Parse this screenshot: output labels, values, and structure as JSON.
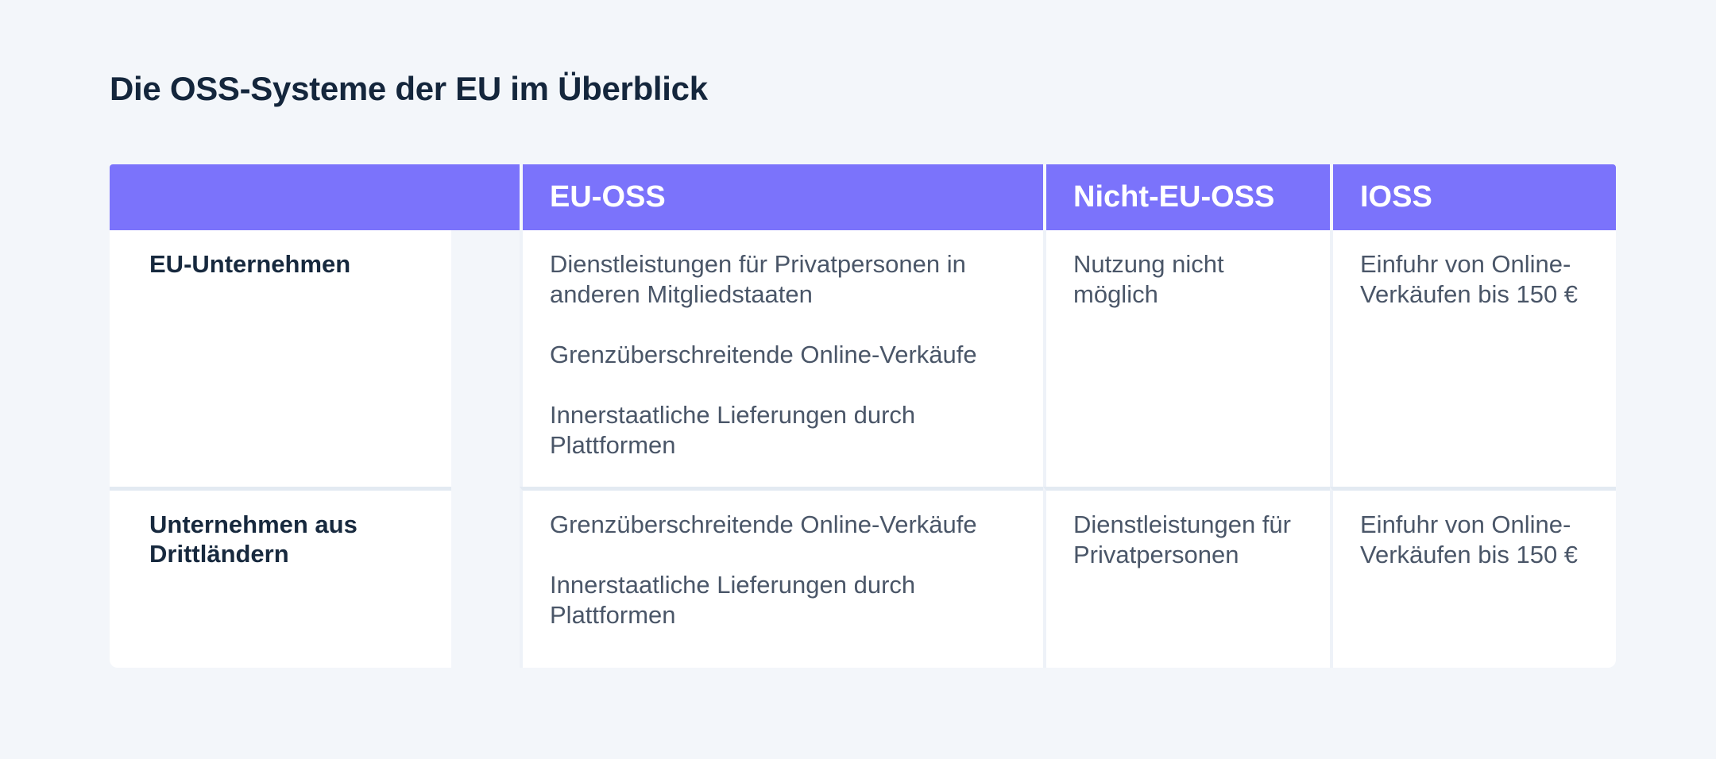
{
  "page": {
    "title": "Die OSS-Systeme der EU im Überblick"
  },
  "table": {
    "header": {
      "columns": [
        "",
        "EU-OSS",
        "Nicht-EU-OSS",
        "IOSS"
      ]
    },
    "rows": [
      {
        "label": "EU-Unternehmen",
        "cells": [
          [
            "Dienstleistungen für Privatpersonen in anderen Mitgliedstaaten",
            "Grenzüberschreitende Online-Verkäufe",
            "Innerstaatliche Lieferungen durch Plattformen"
          ],
          [
            "Nutzung nicht möglich"
          ],
          [
            "Einfuhr von Online-Verkäufen bis 150 €"
          ]
        ]
      },
      {
        "label": "Unternehmen aus Drittländern",
        "cells": [
          [
            "Grenzüberschreitende Online-Verkäufe",
            "Innerstaatliche Lieferungen durch Plattformen"
          ],
          [
            "Dienstleistungen für Privatpersonen"
          ],
          [
            "Einfuhr von Online-Verkäufen bis 150 €"
          ]
        ]
      }
    ]
  },
  "colors": {
    "background": "#F3F6FA",
    "header_bg": "#7B73FB",
    "header_text": "#FFFFFF",
    "title_text": "#14263C",
    "label_text": "#17293E",
    "body_text": "#4A5668",
    "divider": "#E3EAF2",
    "cell_bg": "#FFFFFF"
  }
}
